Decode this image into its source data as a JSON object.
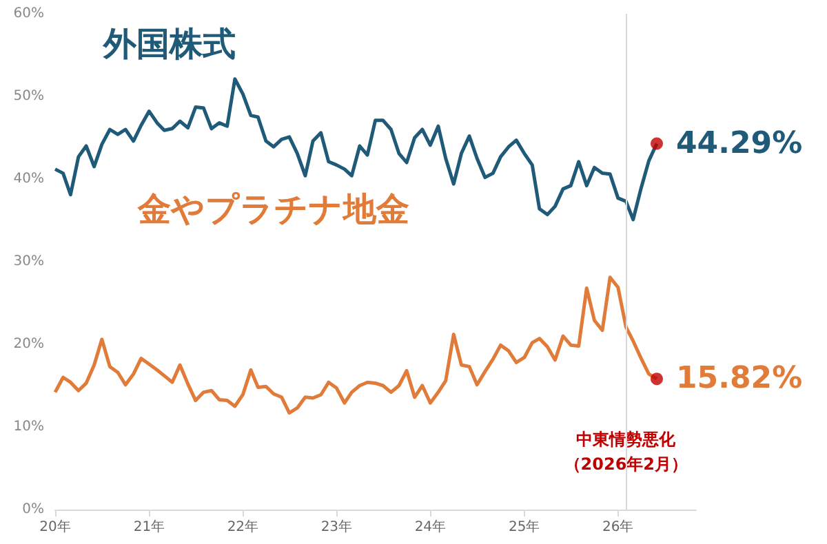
{
  "chart_data": {
    "type": "line",
    "x": [
      "2020-01",
      "2020-02",
      "2020-03",
      "2020-04",
      "2020-05",
      "2020-06",
      "2020-07",
      "2020-08",
      "2020-09",
      "2020-10",
      "2020-11",
      "2020-12",
      "2021-01",
      "2021-02",
      "2021-03",
      "2021-04",
      "2021-05",
      "2021-06",
      "2021-07",
      "2021-08",
      "2021-09",
      "2021-10",
      "2021-11",
      "2021-12",
      "2022-01",
      "2022-02",
      "2022-03",
      "2022-04",
      "2022-05",
      "2022-06",
      "2022-07",
      "2022-08",
      "2022-09",
      "2022-10",
      "2022-11",
      "2022-12",
      "2023-01",
      "2023-02",
      "2023-03",
      "2023-04",
      "2023-05",
      "2023-06",
      "2023-07",
      "2023-08",
      "2023-09",
      "2023-10",
      "2023-11",
      "2023-12",
      "2024-01",
      "2024-02",
      "2024-03",
      "2024-04",
      "2024-05",
      "2024-06",
      "2024-07",
      "2024-08",
      "2024-09",
      "2024-10",
      "2024-11",
      "2024-12",
      "2025-01",
      "2025-02",
      "2025-03",
      "2025-04",
      "2025-05",
      "2025-06",
      "2025-07",
      "2025-08",
      "2025-09",
      "2025-10",
      "2025-11",
      "2025-12",
      "2026-01",
      "2026-02",
      "2026-03",
      "2026-04",
      "2026-05",
      "2026-06"
    ],
    "series": [
      {
        "name": "外国株式",
        "color": "#1f5a78",
        "values": [
          41.2,
          40.7,
          38.1,
          42.7,
          44.0,
          41.5,
          44.2,
          46.0,
          45.4,
          46.0,
          44.6,
          46.5,
          48.2,
          46.8,
          45.9,
          46.1,
          47.0,
          46.2,
          48.7,
          48.6,
          46.1,
          46.8,
          46.4,
          52.1,
          50.3,
          47.7,
          47.5,
          44.6,
          43.9,
          44.8,
          45.1,
          43.1,
          40.4,
          44.6,
          45.6,
          42.1,
          41.7,
          41.2,
          40.4,
          44.0,
          42.9,
          47.1,
          47.1,
          46.0,
          43.1,
          42.0,
          45.0,
          46.0,
          44.1,
          46.4,
          42.5,
          39.4,
          43.1,
          45.2,
          42.5,
          40.2,
          40.7,
          42.7,
          43.9,
          44.7,
          43.1,
          41.7,
          36.4,
          35.7,
          36.7,
          38.8,
          39.2,
          42.1,
          39.2,
          41.4,
          40.7,
          40.6,
          37.7,
          37.3,
          35.1,
          38.9,
          42.2,
          44.29
        ],
        "value_labels": [
          null,
          null,
          null,
          null,
          null,
          null,
          null,
          null,
          null,
          null,
          null,
          null,
          null,
          null,
          null,
          null,
          null,
          null,
          null,
          null,
          null,
          null,
          null,
          null,
          null,
          null,
          null,
          null,
          null,
          null,
          null,
          null,
          null,
          null,
          null,
          null,
          null,
          null,
          null,
          null,
          null,
          null,
          null,
          null,
          null,
          null,
          null,
          null,
          null,
          null,
          null,
          null,
          null,
          null,
          null,
          null,
          null,
          null,
          null,
          null,
          null,
          null,
          null,
          null,
          null,
          null,
          null,
          null,
          null,
          null,
          null,
          null,
          null,
          null,
          null,
          null,
          null,
          "44.29%"
        ]
      },
      {
        "name": "金やプラチナ地金",
        "color": "#e07b39",
        "values": [
          14.2,
          16.0,
          15.4,
          14.4,
          15.3,
          17.5,
          20.6,
          17.3,
          16.6,
          15.1,
          16.4,
          18.3,
          17.6,
          16.9,
          16.2,
          15.4,
          17.5,
          15.2,
          13.2,
          14.2,
          14.4,
          13.3,
          13.2,
          12.5,
          13.9,
          16.9,
          14.8,
          14.9,
          14.0,
          13.6,
          11.7,
          12.3,
          13.6,
          13.5,
          13.9,
          15.4,
          14.7,
          12.9,
          14.2,
          15.0,
          15.4,
          15.3,
          15.0,
          14.2,
          15.0,
          16.8,
          13.6,
          15.0,
          12.9,
          14.2,
          15.6,
          21.2,
          17.5,
          17.3,
          15.1,
          16.7,
          18.2,
          19.9,
          19.2,
          17.8,
          18.4,
          20.2,
          20.7,
          19.7,
          18.1,
          21.0,
          19.9,
          19.8,
          26.8,
          22.9,
          21.7,
          28.1,
          26.9,
          22.1,
          20.4,
          18.3,
          16.4,
          15.82
        ],
        "value_labels": [
          null,
          null,
          null,
          null,
          null,
          null,
          null,
          null,
          null,
          null,
          null,
          null,
          null,
          null,
          null,
          null,
          null,
          null,
          null,
          null,
          null,
          null,
          null,
          null,
          null,
          null,
          null,
          null,
          null,
          null,
          null,
          null,
          null,
          null,
          null,
          null,
          null,
          null,
          null,
          null,
          null,
          null,
          null,
          null,
          null,
          null,
          null,
          null,
          null,
          null,
          null,
          null,
          null,
          null,
          null,
          null,
          null,
          null,
          null,
          null,
          null,
          null,
          null,
          null,
          null,
          null,
          null,
          null,
          null,
          null,
          null,
          null,
          null,
          null,
          null,
          null,
          null,
          "15.82%"
        ]
      },
      {
        "type": "scatter",
        "color": "#c00000",
        "x": [
          "2026-06"
        ],
        "values": [
          44.29
        ]
      },
      {
        "type": "scatter",
        "color": "#c00000",
        "x": [
          "2026-06"
        ],
        "values": [
          15.82
        ]
      }
    ],
    "xlim": [
      "2020-01",
      "2026-11"
    ],
    "xticks": [
      {
        "value": "2020-01",
        "label": "20年"
      },
      {
        "value": "2021-01",
        "label": "21年"
      },
      {
        "value": "2022-01",
        "label": "22年"
      },
      {
        "value": "2023-01",
        "label": "23年"
      },
      {
        "value": "2024-01",
        "label": "24年"
      },
      {
        "value": "2025-01",
        "label": "25年"
      },
      {
        "value": "2026-01",
        "label": "26年"
      }
    ],
    "ylim": [
      0,
      60
    ],
    "yticks": [
      {
        "value": 0,
        "label": "0%"
      },
      {
        "value": 10,
        "label": "10%"
      },
      {
        "value": 20,
        "label": "20%"
      },
      {
        "value": 30,
        "label": "30%"
      },
      {
        "value": 40,
        "label": "40%"
      },
      {
        "value": 50,
        "label": "50%"
      },
      {
        "value": 60,
        "label": "60%"
      }
    ],
    "ref_lines": [
      {
        "axis": "x",
        "value": "2026-02",
        "color": "#d9d9d9"
      }
    ],
    "annotations": [
      {
        "text": "中東情勢悪化",
        "x": "2026-02",
        "y": 8.5
      },
      {
        "text": "（2026年2月）",
        "x": "2026-02",
        "y": 5.5
      }
    ],
    "grid": false,
    "legend": false,
    "line_style": "solid"
  }
}
